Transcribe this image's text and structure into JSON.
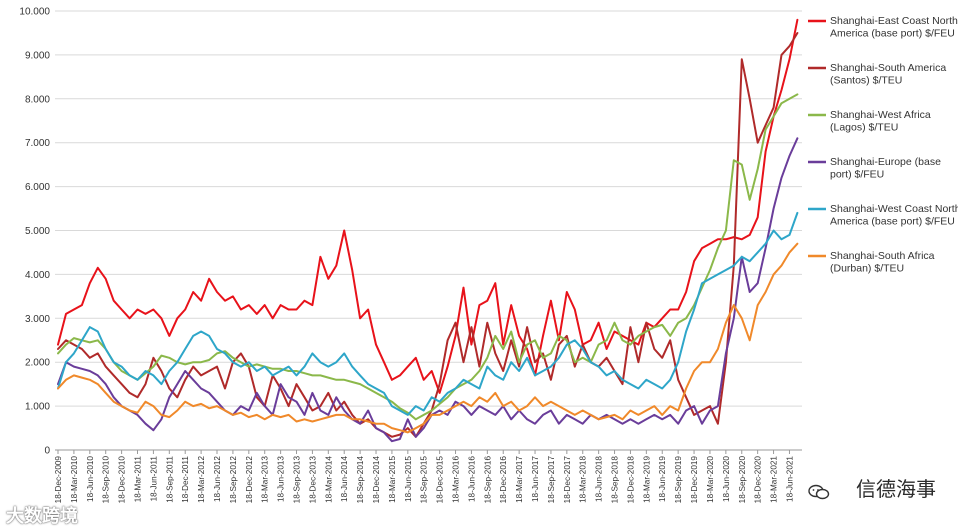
{
  "chart_data": {
    "type": "line",
    "title": "",
    "xlabel": "",
    "ylabel": "",
    "ylim": [
      0,
      10
    ],
    "y_ticks": [
      "0",
      "1.000",
      "2.000",
      "3.000",
      "4.000",
      "5.000",
      "6.000",
      "7.000",
      "8.000",
      "9.000",
      "10.000"
    ],
    "x_ticks": [
      "18-Dec-2009",
      "18-Mar-2010",
      "18-Jun-2010",
      "18-Sep-2010",
      "18-Dec-2010",
      "18-Mar-2011",
      "18-Jun-2011",
      "18-Sep-2011",
      "18-Dec-2011",
      "18-Mar-2012",
      "18-Jun-2012",
      "18-Sep-2012",
      "18-Dec-2012",
      "18-Mar-2013",
      "18-Jun-2013",
      "18-Sep-2013",
      "18-Dec-2013",
      "18-Mar-2014",
      "18-Jun-2014",
      "18-Sep-2014",
      "18-Dec-2014",
      "18-Mar-2015",
      "18-Jun-2015",
      "18-Sep-2015",
      "18-Dec-2015",
      "18-Mar-2016",
      "18-Jun-2016",
      "18-Sep-2016",
      "18-Dec-2016",
      "18-Mar-2017",
      "18-Jun-2017",
      "18-Sep-2017",
      "18-Dec-2017",
      "18-Mar-2018",
      "18-Jun-2018",
      "18-Sep-2018",
      "18-Dec-2018",
      "18-Mar-2019",
      "18-Jun-2019",
      "18-Sep-2019",
      "18-Dec-2019",
      "18-Mar-2020",
      "18-Jun-2020",
      "18-Sep-2020",
      "18-Dec-2020",
      "18-Mar-2021",
      "18-Jun-2021"
    ],
    "x_range_quarters": [
      0,
      46.6
    ],
    "grid": true,
    "legend_position": "right",
    "series": [
      {
        "name": "Shanghai-East Coast North America (base port) $/FEU",
        "color": "#e8121a",
        "x": [
          0,
          0.5,
          1,
          1.5,
          2,
          2.5,
          3,
          3.5,
          4,
          4.5,
          5,
          5.5,
          6,
          6.5,
          7,
          7.5,
          8,
          8.5,
          9,
          9.5,
          10,
          10.5,
          11,
          11.5,
          12,
          12.5,
          13,
          13.5,
          14,
          14.5,
          15,
          15.5,
          16,
          16.5,
          17,
          17.5,
          18,
          18.5,
          19,
          19.5,
          20,
          20.5,
          21,
          21.5,
          22,
          22.5,
          23,
          23.5,
          24,
          24.5,
          25,
          25.5,
          26,
          26.5,
          27,
          27.5,
          28,
          28.5,
          29,
          29.5,
          30,
          30.5,
          31,
          31.5,
          32,
          32.5,
          33,
          33.5,
          34,
          34.5,
          35,
          35.5,
          36,
          36.5,
          37,
          37.5,
          38,
          38.5,
          39,
          39.5,
          40,
          40.5,
          41,
          41.5,
          42,
          42.5,
          43,
          43.5,
          44,
          44.5,
          45,
          45.5,
          46,
          46.5
        ],
        "values": [
          2.4,
          3.1,
          3.2,
          3.3,
          3.8,
          4.15,
          3.9,
          3.4,
          3.2,
          3.0,
          3.2,
          3.1,
          3.2,
          3.0,
          2.6,
          3.0,
          3.2,
          3.6,
          3.4,
          3.9,
          3.6,
          3.4,
          3.5,
          3.2,
          3.3,
          3.1,
          3.3,
          3.0,
          3.3,
          3.2,
          3.2,
          3.4,
          3.3,
          4.4,
          3.9,
          4.2,
          5.0,
          4.1,
          3.0,
          3.2,
          2.4,
          2.0,
          1.6,
          1.7,
          1.9,
          2.1,
          1.6,
          1.8,
          1.3,
          1.9,
          2.6,
          3.7,
          2.4,
          3.3,
          3.4,
          3.8,
          2.4,
          3.3,
          2.6,
          2.3,
          1.7,
          2.6,
          3.4,
          2.5,
          3.6,
          3.2,
          2.4,
          2.5,
          2.9,
          2.3,
          2.7,
          2.6,
          2.5,
          2.4,
          2.9,
          2.8,
          3.0,
          3.2,
          3.2,
          3.6,
          4.3,
          4.6,
          4.7,
          4.8,
          4.8,
          4.85,
          4.8,
          4.9,
          5.3,
          6.8,
          7.6,
          8.2,
          8.9,
          9.8
        ]
      },
      {
        "name": "Shanghai-South America (Santos) $/TEU",
        "color": "#b02a2a",
        "x": [
          0,
          0.5,
          1,
          1.5,
          2,
          2.5,
          3,
          3.5,
          4,
          4.5,
          5,
          5.5,
          6,
          6.5,
          7,
          7.5,
          8,
          8.5,
          9,
          9.5,
          10,
          10.5,
          11,
          11.5,
          12,
          12.5,
          13,
          13.5,
          14,
          14.5,
          15,
          15.5,
          16,
          16.5,
          17,
          17.5,
          18,
          18.5,
          19,
          19.5,
          20,
          20.5,
          21,
          21.5,
          22,
          22.5,
          23,
          23.5,
          24,
          24.5,
          25,
          25.5,
          26,
          26.5,
          27,
          27.5,
          28,
          28.5,
          29,
          29.5,
          30,
          30.5,
          31,
          31.5,
          32,
          32.5,
          33,
          33.5,
          34,
          34.5,
          35,
          35.5,
          36,
          36.5,
          37,
          37.5,
          38,
          38.5,
          39,
          39.5,
          40,
          40.5,
          41,
          41.5,
          42,
          42.5,
          43,
          43.5,
          44,
          44.5,
          45,
          45.5,
          46,
          46.5
        ],
        "values": [
          2.3,
          2.5,
          2.4,
          2.3,
          2.1,
          2.2,
          1.9,
          1.7,
          1.5,
          1.3,
          1.2,
          1.5,
          2.1,
          1.8,
          1.4,
          1.2,
          1.6,
          1.9,
          1.7,
          1.8,
          1.9,
          1.4,
          2.0,
          2.2,
          1.9,
          1.2,
          1.0,
          1.7,
          1.4,
          1.0,
          1.5,
          1.2,
          0.9,
          1.0,
          1.3,
          0.9,
          1.1,
          0.8,
          0.6,
          0.7,
          0.5,
          0.4,
          0.3,
          0.35,
          0.5,
          0.3,
          0.6,
          0.9,
          1.5,
          2.5,
          2.9,
          2.0,
          2.8,
          1.9,
          2.9,
          2.2,
          1.8,
          2.5,
          1.9,
          2.8,
          2.0,
          2.2,
          1.6,
          2.4,
          2.6,
          1.9,
          2.4,
          2.0,
          1.9,
          2.1,
          1.8,
          1.5,
          2.8,
          2.0,
          2.9,
          2.3,
          2.1,
          2.5,
          1.6,
          1.2,
          0.8,
          0.9,
          1.0,
          0.6,
          2.0,
          4.2,
          8.9,
          8.0,
          7.0,
          7.4,
          7.8,
          9.0,
          9.2,
          9.5
        ]
      },
      {
        "name": "Shanghai-West Africa (Lagos) $/TEU",
        "color": "#8bb84a",
        "x": [
          0,
          0.5,
          1,
          1.5,
          2,
          2.5,
          3,
          3.5,
          4,
          4.5,
          5,
          5.5,
          6,
          6.5,
          7,
          7.5,
          8,
          8.5,
          9,
          9.5,
          10,
          10.5,
          11,
          11.5,
          12,
          12.5,
          13,
          13.5,
          14,
          14.5,
          15,
          15.5,
          16,
          16.5,
          17,
          17.5,
          18,
          18.5,
          19,
          19.5,
          20,
          20.5,
          21,
          21.5,
          22,
          22.5,
          23,
          23.5,
          24,
          24.5,
          25,
          25.5,
          26,
          26.5,
          27,
          27.5,
          28,
          28.5,
          29,
          29.5,
          30,
          30.5,
          31,
          31.5,
          32,
          32.5,
          33,
          33.5,
          34,
          34.5,
          35,
          35.5,
          36,
          36.5,
          37,
          37.5,
          38,
          38.5,
          39,
          39.5,
          40,
          40.5,
          41,
          41.5,
          42,
          42.5,
          43,
          43.5,
          44,
          44.5,
          45,
          45.5,
          46,
          46.5
        ],
        "values": [
          2.2,
          2.4,
          2.55,
          2.5,
          2.45,
          2.5,
          2.3,
          2.0,
          1.8,
          1.7,
          1.6,
          1.75,
          1.9,
          2.15,
          2.1,
          2.0,
          1.95,
          2.0,
          2.0,
          2.05,
          2.2,
          2.25,
          2.1,
          2.0,
          1.9,
          1.95,
          1.9,
          1.85,
          1.85,
          1.8,
          1.8,
          1.75,
          1.7,
          1.7,
          1.65,
          1.6,
          1.6,
          1.55,
          1.5,
          1.4,
          1.3,
          1.2,
          1.1,
          0.95,
          0.85,
          0.7,
          0.8,
          0.9,
          1.05,
          1.2,
          1.4,
          1.5,
          1.6,
          1.8,
          2.1,
          2.6,
          2.3,
          2.7,
          2.0,
          2.4,
          2.5,
          2.1,
          2.2,
          2.6,
          2.5,
          2.0,
          2.1,
          2.0,
          2.4,
          2.5,
          2.9,
          2.5,
          2.4,
          2.6,
          2.7,
          2.8,
          2.85,
          2.6,
          2.9,
          3.0,
          3.3,
          3.7,
          4.1,
          4.6,
          5.0,
          6.6,
          6.5,
          5.7,
          6.4,
          7.3,
          7.6,
          7.9,
          8.0,
          8.1
        ]
      },
      {
        "name": "Shanghai-Europe (base port) $/FEU",
        "color": "#6a3d9a",
        "x": [
          0,
          0.5,
          1,
          1.5,
          2,
          2.5,
          3,
          3.5,
          4,
          4.5,
          5,
          5.5,
          6,
          6.5,
          7,
          7.5,
          8,
          8.5,
          9,
          9.5,
          10,
          10.5,
          11,
          11.5,
          12,
          12.5,
          13,
          13.5,
          14,
          14.5,
          15,
          15.5,
          16,
          16.5,
          17,
          17.5,
          18,
          18.5,
          19,
          19.5,
          20,
          20.5,
          21,
          21.5,
          22,
          22.5,
          23,
          23.5,
          24,
          24.5,
          25,
          25.5,
          26,
          26.5,
          27,
          27.5,
          28,
          28.5,
          29,
          29.5,
          30,
          30.5,
          31,
          31.5,
          32,
          32.5,
          33,
          33.5,
          34,
          34.5,
          35,
          35.5,
          36,
          36.5,
          37,
          37.5,
          38,
          38.5,
          39,
          39.5,
          40,
          40.5,
          41,
          41.5,
          42,
          42.5,
          43,
          43.5,
          44,
          44.5,
          45,
          45.5,
          46,
          46.5
        ],
        "values": [
          1.5,
          2.0,
          1.9,
          1.85,
          1.8,
          1.7,
          1.5,
          1.2,
          1.0,
          0.9,
          0.8,
          0.6,
          0.45,
          0.7,
          1.2,
          1.5,
          1.8,
          1.6,
          1.4,
          1.3,
          1.1,
          0.9,
          0.8,
          1.0,
          0.9,
          1.3,
          1.0,
          0.8,
          1.5,
          1.2,
          1.1,
          0.8,
          1.3,
          0.9,
          0.8,
          1.2,
          0.9,
          0.7,
          0.6,
          0.9,
          0.5,
          0.4,
          0.2,
          0.25,
          0.7,
          0.3,
          0.5,
          0.8,
          0.9,
          0.8,
          1.1,
          1.0,
          0.8,
          1.0,
          0.9,
          0.8,
          1.0,
          0.7,
          0.9,
          0.7,
          0.6,
          0.8,
          0.9,
          0.6,
          0.8,
          0.7,
          0.6,
          0.8,
          0.7,
          0.8,
          0.7,
          0.6,
          0.7,
          0.6,
          0.7,
          0.8,
          0.7,
          0.8,
          0.6,
          0.9,
          1.0,
          0.6,
          0.9,
          1.0,
          2.2,
          3.0,
          4.4,
          3.6,
          3.8,
          4.6,
          5.5,
          6.2,
          6.7,
          7.1
        ]
      },
      {
        "name": "Shanghai-West Coast North America (base port) $/FEU",
        "color": "#2ea6c9",
        "x": [
          0,
          0.5,
          1,
          1.5,
          2,
          2.5,
          3,
          3.5,
          4,
          4.5,
          5,
          5.5,
          6,
          6.5,
          7,
          7.5,
          8,
          8.5,
          9,
          9.5,
          10,
          10.5,
          11,
          11.5,
          12,
          12.5,
          13,
          13.5,
          14,
          14.5,
          15,
          15.5,
          16,
          16.5,
          17,
          17.5,
          18,
          18.5,
          19,
          19.5,
          20,
          20.5,
          21,
          21.5,
          22,
          22.5,
          23,
          23.5,
          24,
          24.5,
          25,
          25.5,
          26,
          26.5,
          27,
          27.5,
          28,
          28.5,
          29,
          29.5,
          30,
          30.5,
          31,
          31.5,
          32,
          32.5,
          33,
          33.5,
          34,
          34.5,
          35,
          35.5,
          36,
          36.5,
          37,
          37.5,
          38,
          38.5,
          39,
          39.5,
          40,
          40.5,
          41,
          41.5,
          42,
          42.5,
          43,
          43.5,
          44,
          44.5,
          45,
          45.5,
          46,
          46.5
        ],
        "values": [
          1.4,
          2.0,
          2.2,
          2.5,
          2.8,
          2.7,
          2.3,
          2.0,
          1.9,
          1.7,
          1.6,
          1.8,
          1.7,
          1.5,
          1.8,
          2.0,
          2.3,
          2.6,
          2.7,
          2.6,
          2.3,
          2.2,
          2.0,
          1.9,
          2.0,
          1.8,
          1.9,
          1.7,
          1.8,
          1.9,
          1.7,
          1.9,
          2.2,
          2.0,
          1.9,
          2.0,
          2.2,
          1.9,
          1.7,
          1.5,
          1.4,
          1.3,
          1.0,
          0.9,
          0.8,
          1.0,
          0.9,
          1.2,
          1.1,
          1.3,
          1.4,
          1.6,
          1.5,
          1.4,
          1.9,
          1.7,
          1.6,
          2.0,
          1.8,
          2.1,
          1.7,
          1.8,
          1.9,
          2.1,
          2.4,
          2.5,
          2.3,
          2.0,
          1.9,
          1.7,
          1.8,
          1.6,
          1.5,
          1.4,
          1.6,
          1.5,
          1.4,
          1.6,
          2.0,
          2.7,
          3.2,
          3.8,
          3.9,
          4.0,
          4.1,
          4.2,
          4.4,
          4.3,
          4.5,
          4.7,
          5.0,
          4.8,
          4.9,
          5.4
        ]
      },
      {
        "name": "Shanghai-South Africa (Durban) $/TEU",
        "color": "#f0892a",
        "x": [
          0,
          0.5,
          1,
          1.5,
          2,
          2.5,
          3,
          3.5,
          4,
          4.5,
          5,
          5.5,
          6,
          6.5,
          7,
          7.5,
          8,
          8.5,
          9,
          9.5,
          10,
          10.5,
          11,
          11.5,
          12,
          12.5,
          13,
          13.5,
          14,
          14.5,
          15,
          15.5,
          16,
          16.5,
          17,
          17.5,
          18,
          18.5,
          19,
          19.5,
          20,
          20.5,
          21,
          21.5,
          22,
          22.5,
          23,
          23.5,
          24,
          24.5,
          25,
          25.5,
          26,
          26.5,
          27,
          27.5,
          28,
          28.5,
          29,
          29.5,
          30,
          30.5,
          31,
          31.5,
          32,
          32.5,
          33,
          33.5,
          34,
          34.5,
          35,
          35.5,
          36,
          36.5,
          37,
          37.5,
          38,
          38.5,
          39,
          39.5,
          40,
          40.5,
          41,
          41.5,
          42,
          42.5,
          43,
          43.5,
          44,
          44.5,
          45,
          45.5,
          46,
          46.5
        ],
        "values": [
          1.4,
          1.6,
          1.7,
          1.65,
          1.6,
          1.5,
          1.3,
          1.1,
          1.0,
          0.9,
          0.85,
          1.1,
          1.0,
          0.8,
          0.75,
          0.9,
          1.1,
          1.0,
          1.05,
          0.95,
          1.0,
          0.9,
          0.8,
          0.85,
          0.75,
          0.8,
          0.7,
          0.8,
          0.75,
          0.8,
          0.65,
          0.7,
          0.65,
          0.7,
          0.75,
          0.8,
          0.8,
          0.7,
          0.7,
          0.65,
          0.6,
          0.6,
          0.5,
          0.45,
          0.4,
          0.5,
          0.6,
          0.8,
          0.8,
          0.9,
          1.0,
          1.1,
          1.0,
          1.2,
          1.1,
          1.3,
          1.0,
          1.1,
          0.9,
          1.0,
          1.2,
          1.0,
          1.1,
          1.0,
          0.9,
          0.8,
          0.9,
          0.8,
          0.7,
          0.75,
          0.8,
          0.7,
          0.9,
          0.8,
          0.9,
          1.0,
          0.8,
          1.0,
          0.9,
          1.4,
          1.8,
          2.0,
          2.0,
          2.3,
          2.9,
          3.3,
          3.0,
          2.5,
          3.3,
          3.6,
          4.0,
          4.2,
          4.5,
          4.7
        ]
      }
    ]
  },
  "watermarks": {
    "left": "大数跨境",
    "right": "信德海事"
  }
}
